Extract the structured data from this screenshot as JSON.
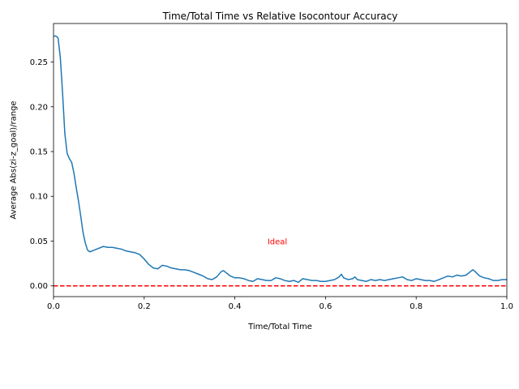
{
  "chart_data": {
    "type": "line",
    "title": "Time/Total Time vs Relative Isocontour Accuracy",
    "xlabel": "Time/Total Time",
    "ylabel": "Average Abs(zi-z_goal)/range",
    "xlim": [
      0,
      1
    ],
    "ylim": [
      -0.012,
      0.293
    ],
    "xticks": [
      0,
      0.2,
      0.4,
      0.6,
      0.8,
      1
    ],
    "xtick_labels": [
      "0.0",
      "0.2",
      "0.4",
      "0.6",
      "0.8",
      "1.0"
    ],
    "yticks": [
      0,
      0.05,
      0.1,
      0.15,
      0.2,
      0.25
    ],
    "ytick_labels": [
      "0.00",
      "0.05",
      "0.10",
      "0.15",
      "0.20",
      "0.25"
    ],
    "grid": false,
    "series": [
      {
        "color": "#1f77b4",
        "x": [
          0,
          0.005,
          0.01,
          0.015,
          0.02,
          0.025,
          0.03,
          0.035,
          0.04,
          0.045,
          0.05,
          0.055,
          0.06,
          0.065,
          0.07,
          0.075,
          0.08,
          0.085,
          0.09,
          0.1,
          0.11,
          0.12,
          0.13,
          0.14,
          0.15,
          0.16,
          0.17,
          0.18,
          0.19,
          0.2,
          0.21,
          0.22,
          0.23,
          0.24,
          0.25,
          0.26,
          0.27,
          0.28,
          0.29,
          0.3,
          0.31,
          0.32,
          0.33,
          0.34,
          0.35,
          0.36,
          0.37,
          0.375,
          0.38,
          0.385,
          0.39,
          0.4,
          0.41,
          0.42,
          0.43,
          0.44,
          0.45,
          0.46,
          0.47,
          0.48,
          0.49,
          0.5,
          0.51,
          0.52,
          0.53,
          0.54,
          0.55,
          0.56,
          0.57,
          0.58,
          0.59,
          0.6,
          0.61,
          0.62,
          0.63,
          0.635,
          0.64,
          0.65,
          0.66,
          0.665,
          0.67,
          0.68,
          0.69,
          0.7,
          0.71,
          0.72,
          0.73,
          0.74,
          0.75,
          0.76,
          0.77,
          0.78,
          0.79,
          0.8,
          0.81,
          0.82,
          0.83,
          0.84,
          0.85,
          0.86,
          0.87,
          0.88,
          0.89,
          0.9,
          0.91,
          0.92,
          0.925,
          0.93,
          0.94,
          0.95,
          0.96,
          0.97,
          0.98,
          0.99,
          1.0
        ],
        "y": [
          0.279,
          0.279,
          0.277,
          0.255,
          0.215,
          0.17,
          0.148,
          0.142,
          0.138,
          0.126,
          0.11,
          0.095,
          0.078,
          0.06,
          0.048,
          0.04,
          0.038,
          0.039,
          0.04,
          0.042,
          0.044,
          0.043,
          0.043,
          0.042,
          0.041,
          0.039,
          0.038,
          0.037,
          0.035,
          0.03,
          0.024,
          0.02,
          0.019,
          0.023,
          0.022,
          0.02,
          0.019,
          0.018,
          0.018,
          0.017,
          0.015,
          0.013,
          0.011,
          0.008,
          0.007,
          0.01,
          0.016,
          0.017,
          0.015,
          0.013,
          0.011,
          0.009,
          0.009,
          0.008,
          0.006,
          0.005,
          0.008,
          0.007,
          0.006,
          0.006,
          0.009,
          0.008,
          0.006,
          0.005,
          0.006,
          0.004,
          0.008,
          0.007,
          0.006,
          0.006,
          0.005,
          0.005,
          0.006,
          0.007,
          0.01,
          0.013,
          0.009,
          0.007,
          0.008,
          0.01,
          0.007,
          0.006,
          0.005,
          0.007,
          0.006,
          0.007,
          0.006,
          0.007,
          0.008,
          0.009,
          0.01,
          0.007,
          0.006,
          0.008,
          0.007,
          0.006,
          0.006,
          0.005,
          0.007,
          0.009,
          0.011,
          0.01,
          0.012,
          0.011,
          0.012,
          0.016,
          0.018,
          0.016,
          0.011,
          0.009,
          0.008,
          0.006,
          0.006,
          0.007,
          0.007
        ]
      }
    ],
    "reference_line": {
      "y": 0,
      "color": "#ff0000",
      "style": "dashed"
    },
    "annotations": [
      {
        "text": "Ideal",
        "x": 0.472,
        "y": 0.05,
        "color": "#ff0000"
      }
    ]
  }
}
